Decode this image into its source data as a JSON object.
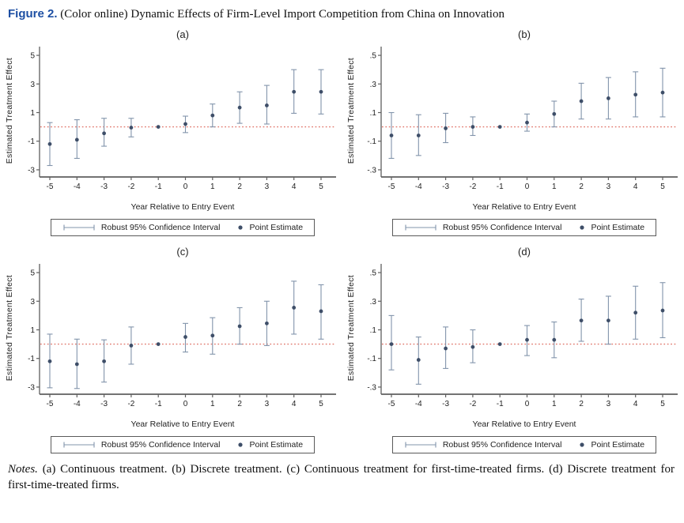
{
  "figure": {
    "label": "Figure 2.",
    "title": "(Color online) Dynamic Effects of Firm-Level Import Competition from China on Innovation"
  },
  "notes": {
    "label": "Notes.",
    "text": "(a) Continuous treatment. (b) Discrete treatment. (c) Continuous treatment for first-time-treated firms. (d) Discrete treatment for first-time-treated firms."
  },
  "colors": {
    "accent_blue": "#1d4fa3",
    "error_bar": "#8294ab",
    "point": "#3e4e68",
    "zero_line": "#e0756a",
    "axis": "#5f5f5f",
    "text": "#1f1f1f"
  },
  "chart_data": [
    {
      "type": "scatter",
      "panel_label": "(a)",
      "xlabel": "Year Relative to Entry Event",
      "ylabel": "Estimated Treatment Effect",
      "legend": [
        "Robust 95% Confidence Interval",
        "Point Estimate"
      ],
      "x": [
        -5,
        -4,
        -3,
        -2,
        -1,
        0,
        1,
        2,
        3,
        4,
        5
      ],
      "estimates": [
        -1.2,
        -0.9,
        -0.45,
        -0.05,
        0,
        0.2,
        0.8,
        1.35,
        1.5,
        2.45,
        2.45
      ],
      "ci_low": [
        -2.7,
        -2.2,
        -1.35,
        -0.7,
        0,
        -0.4,
        0.0,
        0.25,
        0.2,
        0.95,
        0.9
      ],
      "ci_high": [
        0.3,
        0.5,
        0.6,
        0.6,
        0,
        0.75,
        1.6,
        2.45,
        2.9,
        4.0,
        4.0
      ],
      "ytick_values": [
        -3,
        -1,
        1,
        3,
        5
      ],
      "ytick_labels": [
        "-3",
        "-1",
        "1",
        "3",
        "5"
      ],
      "ylim": [
        -3.5,
        5.5
      ],
      "xlim": [
        -5.5,
        5.5
      ],
      "zero_line": 0,
      "grid": false,
      "legend_position": "bottom"
    },
    {
      "type": "scatter",
      "panel_label": "(b)",
      "xlabel": "Year Relative to Entry Event",
      "ylabel": "Estimated Treatment Effect",
      "legend": [
        "Robust 95% Confidence Interval",
        "Point Estimate"
      ],
      "x": [
        -5,
        -4,
        -3,
        -2,
        -1,
        0,
        1,
        2,
        3,
        4,
        5
      ],
      "estimates": [
        -0.06,
        -0.06,
        -0.01,
        0.0,
        0,
        0.03,
        0.09,
        0.18,
        0.2,
        0.225,
        0.24
      ],
      "ci_low": [
        -0.22,
        -0.2,
        -0.11,
        -0.06,
        0,
        -0.03,
        0.0,
        0.055,
        0.055,
        0.07,
        0.07
      ],
      "ci_high": [
        0.1,
        0.085,
        0.095,
        0.07,
        0,
        0.09,
        0.18,
        0.305,
        0.345,
        0.385,
        0.41
      ],
      "ytick_values": [
        -0.3,
        -0.1,
        0.1,
        0.3,
        0.5
      ],
      "ytick_labels": [
        "-.3",
        "-.1",
        ".1",
        ".3",
        ".5"
      ],
      "ylim": [
        -0.35,
        0.55
      ],
      "xlim": [
        -5.5,
        5.5
      ],
      "zero_line": 0,
      "grid": false,
      "legend_position": "bottom"
    },
    {
      "type": "scatter",
      "panel_label": "(c)",
      "xlabel": "Year Relative to Entry Event",
      "ylabel": "Estimated Treatment Effect",
      "legend": [
        "Robust 95% Confidence Interval",
        "Point Estimate"
      ],
      "x": [
        -5,
        -4,
        -3,
        -2,
        -1,
        0,
        1,
        2,
        3,
        4,
        5
      ],
      "estimates": [
        -1.2,
        -1.4,
        -1.2,
        -0.1,
        0,
        0.5,
        0.6,
        1.25,
        1.45,
        2.55,
        2.3
      ],
      "ci_low": [
        -3.05,
        -3.1,
        -2.65,
        -1.4,
        0,
        -0.55,
        -0.7,
        0.0,
        -0.1,
        0.7,
        0.35
      ],
      "ci_high": [
        0.7,
        0.35,
        0.3,
        1.2,
        0,
        1.45,
        1.85,
        2.55,
        3.0,
        4.4,
        4.15
      ],
      "ytick_values": [
        -3,
        -1,
        1,
        3,
        5
      ],
      "ytick_labels": [
        "-3",
        "-1",
        "1",
        "3",
        "5"
      ],
      "ylim": [
        -3.5,
        5.5
      ],
      "xlim": [
        -5.5,
        5.5
      ],
      "zero_line": 0,
      "grid": false,
      "legend_position": "bottom"
    },
    {
      "type": "scatter",
      "panel_label": "(d)",
      "xlabel": "Year Relative to Entry Event",
      "ylabel": "Estimated Treatment Effect",
      "legend": [
        "Robust 95% Confidence Interval",
        "Point Estimate"
      ],
      "x": [
        -5,
        -4,
        -3,
        -2,
        -1,
        0,
        1,
        2,
        3,
        4,
        5
      ],
      "estimates": [
        0.0,
        -0.11,
        -0.03,
        -0.02,
        0,
        0.03,
        0.03,
        0.165,
        0.165,
        0.22,
        0.235
      ],
      "ci_low": [
        -0.18,
        -0.28,
        -0.17,
        -0.13,
        0,
        -0.08,
        -0.095,
        0.02,
        0.0,
        0.035,
        0.045
      ],
      "ci_high": [
        0.2,
        0.05,
        0.12,
        0.1,
        0,
        0.13,
        0.155,
        0.315,
        0.335,
        0.405,
        0.43
      ],
      "ytick_values": [
        -0.3,
        -0.1,
        0.1,
        0.3,
        0.5
      ],
      "ytick_labels": [
        "-.3",
        "-.1",
        ".1",
        ".3",
        ".5"
      ],
      "ylim": [
        -0.35,
        0.55
      ],
      "xlim": [
        -5.5,
        5.5
      ],
      "zero_line": 0,
      "grid": false,
      "legend_position": "bottom"
    }
  ]
}
